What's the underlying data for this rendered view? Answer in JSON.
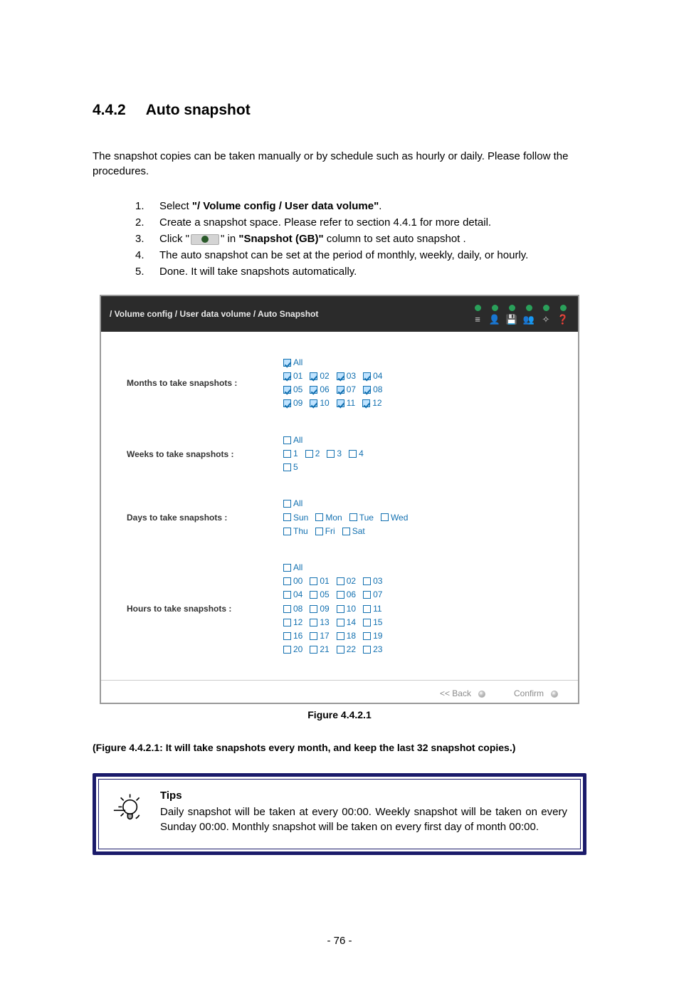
{
  "heading": {
    "number": "4.4.2",
    "title": "Auto snapshot"
  },
  "intro": "The snapshot copies can be taken manually or by schedule such as hourly or daily. Please follow the procedures.",
  "steps": [
    {
      "n": "1.",
      "pre": "Select ",
      "bold": "\"/ Volume config / User data volume\"",
      "post": "."
    },
    {
      "n": "2.",
      "pre": "Create a snapshot space. Please refer to section 4.4.1 for more detail.",
      "bold": "",
      "post": ""
    },
    {
      "n": "3.",
      "clickline": true,
      "click_pre": "Click \"",
      "click_post": "\" in ",
      "bold": "\"Snapshot (GB)\"",
      "post2": " column to set auto snapshot ."
    },
    {
      "n": "4.",
      "pre": "The auto snapshot can be set at the period of monthly, weekly, daily, or hourly.",
      "bold": "",
      "post": ""
    },
    {
      "n": "5.",
      "pre": "Done. It will take snapshots automatically.",
      "bold": "",
      "post": ""
    }
  ],
  "shot": {
    "breadcrumb": "/ Volume config / User data volume / Auto Snapshot",
    "hdr_glyphs": [
      "≡",
      "👤",
      "💾",
      "👥",
      "✧",
      "❓"
    ],
    "rows": {
      "months": {
        "label": "Months to take snapshots :",
        "all_checked": true,
        "opts": [
          [
            {
              "l": "01",
              "c": true
            },
            {
              "l": "02",
              "c": true
            },
            {
              "l": "03",
              "c": true
            },
            {
              "l": "04",
              "c": true
            }
          ],
          [
            {
              "l": "05",
              "c": true
            },
            {
              "l": "06",
              "c": true
            },
            {
              "l": "07",
              "c": true
            },
            {
              "l": "08",
              "c": true
            }
          ],
          [
            {
              "l": "09",
              "c": true
            },
            {
              "l": "10",
              "c": true
            },
            {
              "l": "11",
              "c": true
            },
            {
              "l": "12",
              "c": true
            }
          ]
        ]
      },
      "weeks": {
        "label": "Weeks to take snapshots :",
        "all_checked": false,
        "opts": [
          [
            {
              "l": "1",
              "c": false
            },
            {
              "l": "2",
              "c": false
            },
            {
              "l": "3",
              "c": false
            },
            {
              "l": "4",
              "c": false
            }
          ],
          [
            {
              "l": "5",
              "c": false
            }
          ]
        ]
      },
      "days": {
        "label": "Days to take snapshots :",
        "all_checked": false,
        "opts": [
          [
            {
              "l": "Sun",
              "c": false
            },
            {
              "l": "Mon",
              "c": false
            },
            {
              "l": "Tue",
              "c": false
            },
            {
              "l": "Wed",
              "c": false
            }
          ],
          [
            {
              "l": "Thu",
              "c": false
            },
            {
              "l": "Fri",
              "c": false
            },
            {
              "l": "Sat",
              "c": false
            }
          ]
        ]
      },
      "hours": {
        "label": "Hours to take snapshots :",
        "all_checked": false,
        "opts": [
          [
            {
              "l": "00",
              "c": false
            },
            {
              "l": "01",
              "c": false
            },
            {
              "l": "02",
              "c": false
            },
            {
              "l": "03",
              "c": false
            }
          ],
          [
            {
              "l": "04",
              "c": false
            },
            {
              "l": "05",
              "c": false
            },
            {
              "l": "06",
              "c": false
            },
            {
              "l": "07",
              "c": false
            }
          ],
          [
            {
              "l": "08",
              "c": false
            },
            {
              "l": "09",
              "c": false
            },
            {
              "l": "10",
              "c": false
            },
            {
              "l": "11",
              "c": false
            }
          ],
          [
            {
              "l": "12",
              "c": false
            },
            {
              "l": "13",
              "c": false
            },
            {
              "l": "14",
              "c": false
            },
            {
              "l": "15",
              "c": false
            }
          ],
          [
            {
              "l": "16",
              "c": false
            },
            {
              "l": "17",
              "c": false
            },
            {
              "l": "18",
              "c": false
            },
            {
              "l": "19",
              "c": false
            }
          ],
          [
            {
              "l": "20",
              "c": false
            },
            {
              "l": "21",
              "c": false
            },
            {
              "l": "22",
              "c": false
            },
            {
              "l": "23",
              "c": false
            }
          ]
        ]
      }
    },
    "buttons": {
      "back": "<< Back",
      "confirm": "Confirm"
    }
  },
  "figure_caption": "Figure 4.4.2.1",
  "figure_note": "(Figure 4.4.2.1: It will take snapshots every month, and keep the last 32 snapshot copies.)",
  "tips": {
    "heading": "Tips",
    "body": "Daily snapshot will be taken at every 00:00. Weekly snapshot will be taken on every Sunday 00:00. Monthly snapshot will be taken on every first day of month 00:00."
  },
  "page_number": "- 76 -",
  "all_label": "All"
}
